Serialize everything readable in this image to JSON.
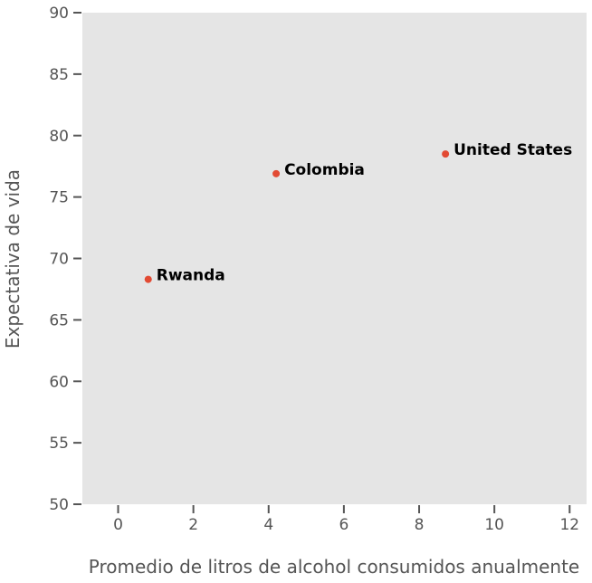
{
  "chart_data": {
    "type": "scatter",
    "xlabel": "Promedio de litros de alcohol consumidos anualmente",
    "ylabel": "Expectativa de vida",
    "xlim": [
      -0.95,
      12.45
    ],
    "ylim": [
      50,
      90
    ],
    "xticks": [
      0,
      2,
      4,
      6,
      8,
      10,
      12
    ],
    "yticks": [
      50,
      55,
      60,
      65,
      70,
      75,
      80,
      85,
      90
    ],
    "grid": false,
    "background": "#e5e5e5",
    "point_color": "#e24a33",
    "points": [
      {
        "label": "Rwanda",
        "x": 0.8,
        "y": 68.3
      },
      {
        "label": "Colombia",
        "x": 4.2,
        "y": 76.9
      },
      {
        "label": "United States",
        "x": 8.7,
        "y": 78.5
      }
    ]
  }
}
